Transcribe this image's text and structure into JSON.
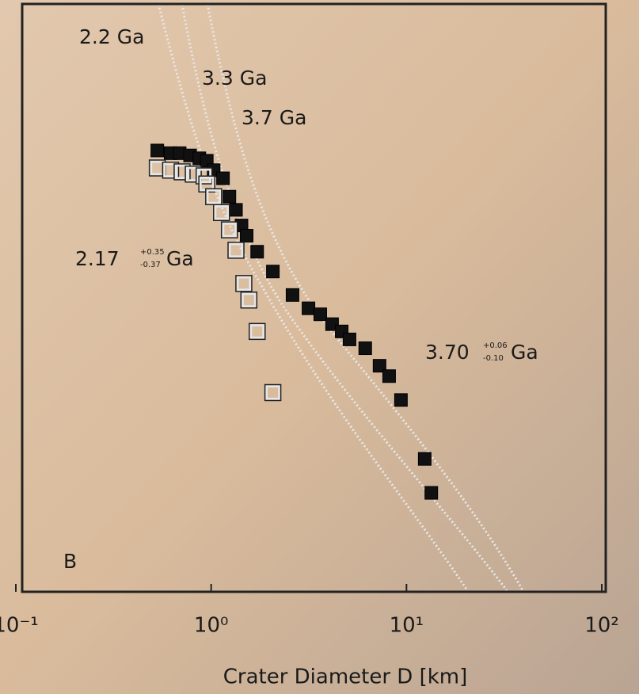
{
  "chart_data": {
    "type": "scatter",
    "x_label": "Crater Diameter D   [km]",
    "panel_label": "B",
    "log_x": true,
    "log_y": true,
    "xlim": [
      0.1,
      100
    ],
    "xticks": [
      {
        "value": 0.1,
        "label": "10⁻¹"
      },
      {
        "value": 1,
        "label": "10⁰"
      },
      {
        "value": 10,
        "label": "10¹"
      },
      {
        "value": 100,
        "label": "10²"
      }
    ],
    "ylim": [
      0.0001,
      0.1
    ],
    "annotations": [
      "2.2 Ga",
      "3.3 Ga",
      "3.7 Ga",
      "2.17",
      "+0.35",
      "-0.37",
      "Ga",
      "3.70",
      "+0.06",
      "-0.10",
      "Ga"
    ],
    "series": [
      {
        "color": "#111111",
        "marker": "filled-square",
        "x": [
          0.53,
          0.62,
          0.69,
          0.78,
          0.87,
          0.95,
          1.03,
          1.15,
          1.24,
          1.34,
          1.43,
          1.52,
          1.72,
          2.07,
          2.61,
          3.15,
          3.62,
          4.16,
          4.66,
          5.11,
          6.15,
          7.28,
          8.15,
          9.37,
          12.4,
          13.4
        ],
        "values": [
          0.0191,
          0.0185,
          0.0185,
          0.018,
          0.0174,
          0.0169,
          0.0151,
          0.0137,
          0.011,
          0.0094,
          0.0078,
          0.0069,
          0.0057,
          0.0045,
          0.0034,
          0.0029,
          0.0027,
          0.0024,
          0.0022,
          0.002,
          0.0018,
          0.00146,
          0.00129,
          0.00097,
          0.00048,
          0.00032
        ]
      },
      {
        "color": "#e6e6e6",
        "marker": "open-square",
        "x": [
          0.53,
          0.62,
          0.71,
          0.81,
          0.92,
          0.95,
          1.03,
          1.13,
          1.24,
          1.34,
          1.47,
          1.56,
          1.72,
          2.07
        ],
        "values": [
          0.0155,
          0.0151,
          0.0148,
          0.0144,
          0.0141,
          0.0128,
          0.011,
          0.0091,
          0.0074,
          0.0058,
          0.0039,
          0.0032,
          0.0022,
          0.00106
        ]
      }
    ]
  }
}
